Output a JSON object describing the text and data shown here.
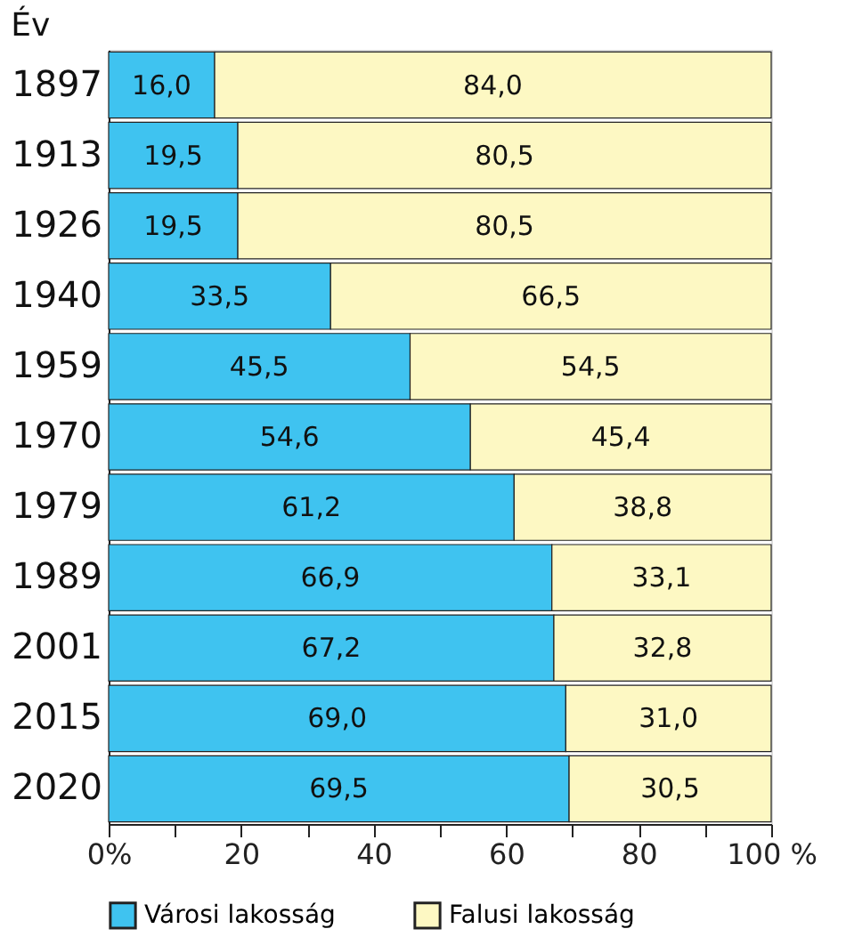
{
  "chart_data": {
    "type": "bar",
    "orientation": "horizontal",
    "stacked": true,
    "ylabel": "Év",
    "categories": [
      "1897",
      "1913",
      "1926",
      "1940",
      "1959",
      "1970",
      "1979",
      "1989",
      "2001",
      "2015",
      "2020"
    ],
    "series": [
      {
        "name": "Városi lakosság",
        "color": "#3fc3f0",
        "values": [
          16.0,
          19.5,
          19.5,
          33.5,
          45.5,
          54.6,
          61.2,
          66.9,
          67.2,
          69.0,
          69.5
        ],
        "value_labels": [
          "16,0",
          "19,5",
          "19,5",
          "33,5",
          "45,5",
          "54,6",
          "61,2",
          "66,9",
          "67,2",
          "69,0",
          "69,5"
        ]
      },
      {
        "name": "Falusi lakosság",
        "color": "#fdf8c3",
        "values": [
          84.0,
          80.5,
          80.5,
          66.5,
          54.5,
          45.4,
          38.8,
          33.1,
          32.8,
          31.0,
          30.5
        ],
        "value_labels": [
          "84,0",
          "80,5",
          "80,5",
          "66,5",
          "54,5",
          "45,4",
          "38,8",
          "33,1",
          "32,8",
          "31,0",
          "30,5"
        ]
      }
    ],
    "xlim": [
      0,
      100
    ],
    "xticks": [
      {
        "value": 0,
        "label": "0%"
      },
      {
        "value": 10,
        "label": null
      },
      20,
      {
        "value": 30,
        "label": null
      },
      40,
      {
        "value": 50,
        "label": null
      },
      60,
      {
        "value": 70,
        "label": null
      },
      80,
      {
        "value": 90,
        "label": null
      },
      {
        "value": 100,
        "label": "100 %"
      }
    ],
    "grid": false,
    "legend": "bottom"
  }
}
